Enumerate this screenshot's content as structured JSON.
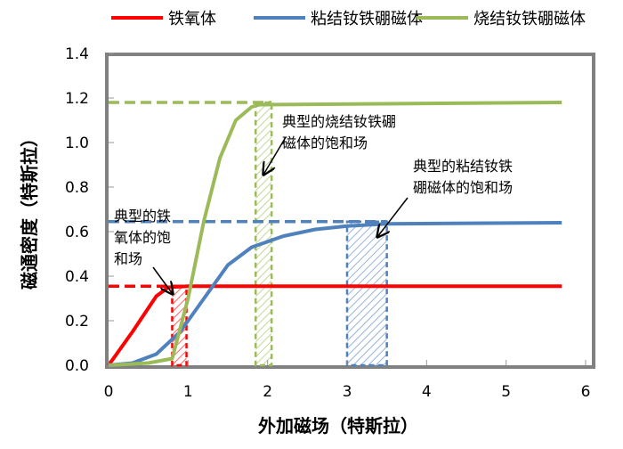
{
  "chart_data": {
    "type": "line",
    "title": "",
    "xlabel": "外加磁场（特斯拉）",
    "ylabel": "磁通密度（特斯拉）",
    "xlim": [
      0,
      6
    ],
    "ylim": [
      0,
      1.4
    ],
    "xticks": [
      "0",
      "1",
      "2",
      "3",
      "4",
      "5",
      "6"
    ],
    "yticks": [
      "0.0",
      "0.2",
      "0.4",
      "0.6",
      "0.8",
      "1.0",
      "1.2",
      "1.4"
    ],
    "legend_position": "top",
    "series": [
      {
        "name": "铁氧体",
        "color": "#ff0000",
        "x": [
          0,
          0.3,
          0.6,
          0.75,
          1,
          5.7
        ],
        "y": [
          0,
          0.15,
          0.31,
          0.35,
          0.355,
          0.355
        ],
        "sat": 0.355,
        "sat_field": [
          0.8,
          0.98
        ]
      },
      {
        "name": "粘结钕铁硼磁体",
        "color": "#4f81bd",
        "x": [
          0,
          0.3,
          0.6,
          0.9,
          1.2,
          1.5,
          1.8,
          2.2,
          2.6,
          3,
          3.5,
          5.7
        ],
        "y": [
          0,
          0.01,
          0.05,
          0.15,
          0.3,
          0.45,
          0.53,
          0.58,
          0.61,
          0.625,
          0.635,
          0.64
        ],
        "sat": 0.645,
        "sat_field": [
          3.0,
          3.5
        ]
      },
      {
        "name": "烧结钕铁硼磁体",
        "color": "#9bbb59",
        "x": [
          0,
          0.5,
          0.8,
          1,
          1.2,
          1.4,
          1.6,
          1.8,
          1.9,
          5.7
        ],
        "y": [
          0,
          0.01,
          0.03,
          0.3,
          0.65,
          0.93,
          1.1,
          1.16,
          1.17,
          1.18
        ],
        "sat": 1.18,
        "sat_field": [
          1.85,
          2.05
        ]
      }
    ],
    "annotations": [
      {
        "lines": [
          "典型的铁",
          "氧体的饱",
          "和场"
        ]
      },
      {
        "lines": [
          "典型的烧结钕铁硼",
          "磁体的饱和场"
        ]
      },
      {
        "lines": [
          "典型的粘结钕铁",
          "硼磁体的饱和场"
        ]
      }
    ]
  }
}
